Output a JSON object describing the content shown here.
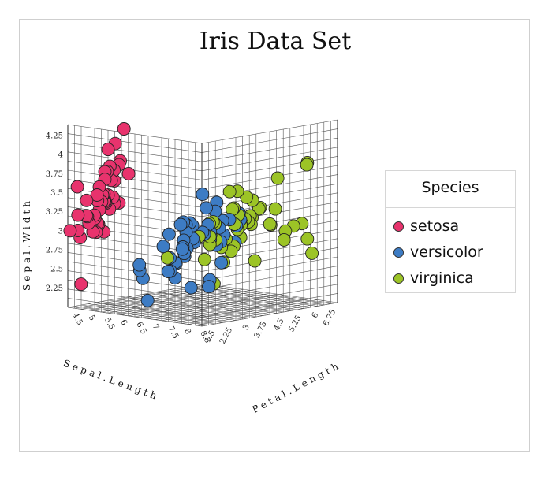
{
  "chart_data": {
    "type": "scatter",
    "title": "Iris Data Set",
    "projection": "3d",
    "axes": {
      "x": {
        "label": "Sepal.Length",
        "ticks": [
          "4.5",
          "5",
          "5.5",
          "6",
          "6.5",
          "7",
          "7.5",
          "8",
          "8.5"
        ],
        "range": [
          4.3,
          8.5
        ]
      },
      "y": {
        "label": "Sepal.Width",
        "ticks": [
          "2.25",
          "2.5",
          "2.75",
          "3",
          "3.25",
          "3.5",
          "3.75",
          "4",
          "4.25"
        ],
        "range": [
          2.0,
          4.4
        ]
      },
      "z": {
        "label": "Petal.Length",
        "ticks": [
          "1.5",
          "2.25",
          "3",
          "3.75",
          "4.5",
          "5.25",
          "6",
          "6.75"
        ],
        "range": [
          1.0,
          6.9
        ]
      }
    },
    "legend": {
      "title": "Species",
      "position": "right"
    },
    "grid": true,
    "series": [
      {
        "name": "setosa",
        "color": "#e8336d",
        "points": [
          [
            5.1,
            3.5,
            1.4
          ],
          [
            4.9,
            3.0,
            1.4
          ],
          [
            4.7,
            3.2,
            1.3
          ],
          [
            4.6,
            3.1,
            1.5
          ],
          [
            5.0,
            3.6,
            1.4
          ],
          [
            5.4,
            3.9,
            1.7
          ],
          [
            4.6,
            3.4,
            1.4
          ],
          [
            5.0,
            3.4,
            1.5
          ],
          [
            4.4,
            2.9,
            1.4
          ],
          [
            4.9,
            3.1,
            1.5
          ],
          [
            5.4,
            3.7,
            1.5
          ],
          [
            4.8,
            3.4,
            1.6
          ],
          [
            4.8,
            3.0,
            1.4
          ],
          [
            4.3,
            3.0,
            1.1
          ],
          [
            5.8,
            4.0,
            1.2
          ],
          [
            5.7,
            4.4,
            1.5
          ],
          [
            5.4,
            3.9,
            1.3
          ],
          [
            5.1,
            3.5,
            1.4
          ],
          [
            5.7,
            3.8,
            1.7
          ],
          [
            5.1,
            3.8,
            1.5
          ],
          [
            5.4,
            3.4,
            1.7
          ],
          [
            5.1,
            3.7,
            1.5
          ],
          [
            4.6,
            3.6,
            1.0
          ],
          [
            5.1,
            3.3,
            1.7
          ],
          [
            4.8,
            3.4,
            1.9
          ],
          [
            5.0,
            3.0,
            1.6
          ],
          [
            5.0,
            3.4,
            1.6
          ],
          [
            5.2,
            3.5,
            1.5
          ],
          [
            5.2,
            3.4,
            1.4
          ],
          [
            4.7,
            3.2,
            1.6
          ],
          [
            4.8,
            3.1,
            1.6
          ],
          [
            5.4,
            3.4,
            1.5
          ],
          [
            5.2,
            4.1,
            1.5
          ],
          [
            5.5,
            4.2,
            1.4
          ],
          [
            4.9,
            3.1,
            1.5
          ],
          [
            5.0,
            3.2,
            1.2
          ],
          [
            5.5,
            3.5,
            1.3
          ],
          [
            4.4,
            3.0,
            1.3
          ],
          [
            5.1,
            3.4,
            1.5
          ],
          [
            5.0,
            3.5,
            1.3
          ],
          [
            4.5,
            2.3,
            1.3
          ],
          [
            4.4,
            3.2,
            1.3
          ],
          [
            5.0,
            3.5,
            1.6
          ],
          [
            5.1,
            3.8,
            1.9
          ],
          [
            4.8,
            3.0,
            1.4
          ],
          [
            5.1,
            3.8,
            1.6
          ],
          [
            4.6,
            3.2,
            1.4
          ],
          [
            5.3,
            3.7,
            1.5
          ],
          [
            5.0,
            3.3,
            1.4
          ]
        ]
      },
      {
        "name": "versicolor",
        "color": "#3d7cc4",
        "points": [
          [
            7.0,
            3.2,
            4.7
          ],
          [
            6.4,
            3.2,
            4.5
          ],
          [
            6.9,
            3.1,
            4.9
          ],
          [
            5.5,
            2.3,
            4.0
          ],
          [
            6.5,
            2.8,
            4.6
          ],
          [
            5.7,
            2.8,
            4.5
          ],
          [
            6.3,
            3.3,
            4.7
          ],
          [
            4.9,
            2.4,
            3.3
          ],
          [
            6.6,
            2.9,
            4.6
          ],
          [
            5.2,
            2.7,
            3.9
          ],
          [
            5.0,
            2.0,
            3.5
          ],
          [
            5.9,
            3.0,
            4.2
          ],
          [
            6.0,
            2.2,
            4.0
          ],
          [
            6.1,
            2.9,
            4.7
          ],
          [
            5.6,
            2.9,
            3.6
          ],
          [
            6.7,
            3.1,
            4.4
          ],
          [
            5.6,
            3.0,
            4.5
          ],
          [
            5.8,
            2.7,
            4.1
          ],
          [
            6.2,
            2.2,
            4.5
          ],
          [
            5.6,
            2.5,
            3.9
          ],
          [
            5.9,
            3.2,
            4.8
          ],
          [
            6.1,
            2.8,
            4.0
          ],
          [
            6.3,
            2.5,
            4.9
          ],
          [
            6.1,
            2.8,
            4.7
          ],
          [
            6.4,
            2.9,
            4.3
          ],
          [
            6.6,
            3.0,
            4.4
          ],
          [
            6.8,
            2.8,
            4.8
          ],
          [
            6.7,
            3.0,
            5.0
          ],
          [
            6.0,
            2.9,
            4.5
          ],
          [
            5.7,
            2.6,
            3.5
          ],
          [
            5.5,
            2.4,
            3.8
          ],
          [
            5.5,
            2.4,
            3.7
          ],
          [
            5.8,
            2.7,
            3.9
          ],
          [
            6.0,
            2.7,
            5.1
          ],
          [
            5.4,
            3.0,
            4.5
          ],
          [
            6.0,
            3.4,
            4.5
          ],
          [
            6.7,
            3.1,
            4.7
          ],
          [
            6.3,
            2.3,
            4.4
          ],
          [
            5.6,
            3.0,
            4.1
          ],
          [
            5.5,
            2.5,
            4.0
          ],
          [
            5.5,
            2.6,
            4.4
          ],
          [
            6.1,
            3.0,
            4.6
          ],
          [
            5.8,
            2.6,
            4.0
          ],
          [
            5.0,
            2.3,
            3.3
          ],
          [
            5.6,
            2.7,
            4.2
          ],
          [
            5.7,
            3.0,
            4.2
          ],
          [
            5.7,
            2.9,
            4.2
          ],
          [
            6.2,
            2.9,
            4.3
          ],
          [
            5.1,
            2.5,
            3.0
          ],
          [
            5.7,
            2.8,
            4.1
          ]
        ]
      },
      {
        "name": "virginica",
        "color": "#9cc426",
        "points": [
          [
            6.3,
            3.3,
            6.0
          ],
          [
            5.8,
            2.7,
            5.1
          ],
          [
            7.1,
            3.0,
            5.9
          ],
          [
            6.3,
            2.9,
            5.6
          ],
          [
            6.5,
            3.0,
            5.8
          ],
          [
            7.6,
            3.0,
            6.6
          ],
          [
            4.9,
            2.5,
            4.5
          ],
          [
            7.3,
            2.9,
            6.3
          ],
          [
            6.7,
            2.5,
            5.8
          ],
          [
            7.2,
            3.6,
            6.1
          ],
          [
            6.5,
            3.2,
            5.1
          ],
          [
            6.4,
            2.7,
            5.3
          ],
          [
            6.8,
            3.0,
            5.5
          ],
          [
            5.7,
            2.5,
            5.0
          ],
          [
            5.8,
            2.8,
            5.1
          ],
          [
            6.4,
            3.2,
            5.3
          ],
          [
            6.5,
            3.0,
            5.5
          ],
          [
            7.7,
            3.8,
            6.7
          ],
          [
            7.7,
            2.6,
            6.9
          ],
          [
            6.0,
            2.2,
            5.0
          ],
          [
            6.9,
            3.2,
            5.7
          ],
          [
            5.6,
            2.8,
            4.9
          ],
          [
            7.7,
            2.8,
            6.7
          ],
          [
            6.3,
            2.7,
            4.9
          ],
          [
            6.7,
            3.3,
            5.7
          ],
          [
            7.2,
            3.2,
            6.0
          ],
          [
            6.2,
            2.8,
            4.8
          ],
          [
            6.1,
            3.0,
            4.9
          ],
          [
            6.4,
            2.8,
            5.6
          ],
          [
            7.2,
            3.0,
            5.8
          ],
          [
            7.4,
            2.8,
            6.1
          ],
          [
            7.9,
            3.8,
            6.4
          ],
          [
            6.4,
            2.8,
            5.6
          ],
          [
            6.3,
            2.8,
            5.1
          ],
          [
            6.1,
            2.6,
            5.6
          ],
          [
            7.7,
            3.0,
            6.1
          ],
          [
            6.3,
            3.4,
            5.6
          ],
          [
            6.4,
            3.1,
            5.5
          ],
          [
            6.0,
            3.0,
            4.8
          ],
          [
            6.9,
            3.1,
            5.4
          ],
          [
            6.7,
            3.1,
            5.6
          ],
          [
            6.9,
            3.1,
            5.1
          ],
          [
            6.8,
            3.2,
            5.9
          ],
          [
            6.7,
            3.3,
            5.7
          ],
          [
            6.7,
            3.0,
            5.2
          ],
          [
            6.3,
            2.5,
            5.0
          ],
          [
            6.5,
            3.0,
            5.2
          ],
          [
            6.2,
            3.4,
            5.4
          ],
          [
            5.9,
            3.0,
            5.1
          ]
        ]
      }
    ]
  }
}
